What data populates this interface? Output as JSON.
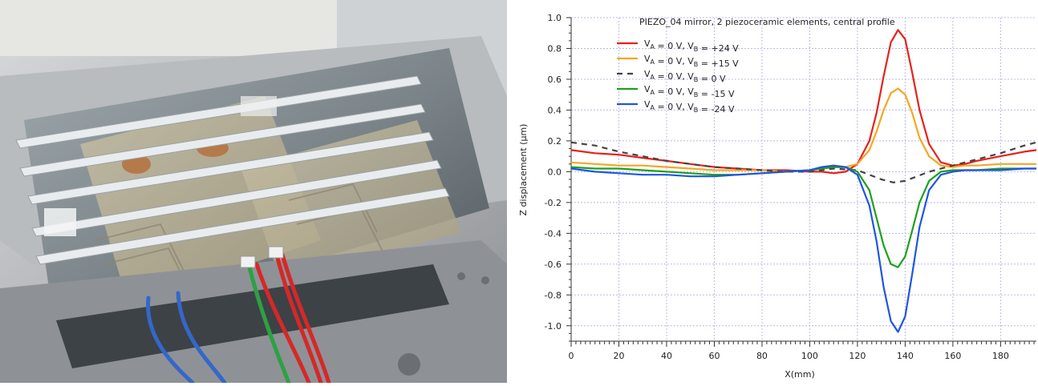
{
  "photo": {
    "description_icon": "photo-icon"
  },
  "chart_data": {
    "type": "line",
    "title": "PIEZO_04 mirror, 2 piezoceramic elements, central profile",
    "xlabel": "X(mm)",
    "ylabel": "Z displacement (µm)",
    "xlim": [
      0,
      195
    ],
    "ylim": [
      -1.1,
      1.0
    ],
    "xticks": [
      0,
      20,
      40,
      60,
      80,
      100,
      120,
      140,
      160,
      180
    ],
    "yticks": [
      1.0,
      0.8,
      0.6,
      0.4,
      0.2,
      0.0,
      -0.2,
      -0.4,
      -0.6,
      -0.8,
      -1.0
    ],
    "ytick_labels": [
      "1.0",
      "0.8",
      "0.6",
      "0.4",
      "0.2",
      "0.0",
      "-0.2",
      "-0.4",
      "-0.6",
      "-0.8",
      "-1.0"
    ],
    "grid": true,
    "legend_position": "top-left",
    "series": [
      {
        "name": "VA = 0 V, VB = +24 V",
        "legend_main": "V",
        "legend_sub_a": "A",
        "legend_mid": " = 0 V, V",
        "legend_sub_b": "B",
        "legend_tail": " = +24 V",
        "color": "#e8201c",
        "dash": "",
        "x": [
          0,
          10,
          20,
          30,
          40,
          50,
          60,
          70,
          80,
          90,
          100,
          105,
          110,
          115,
          120,
          125,
          128,
          131,
          134,
          137,
          140,
          143,
          146,
          150,
          155,
          160,
          165,
          170,
          180,
          190,
          195
        ],
        "y": [
          0.14,
          0.12,
          0.11,
          0.09,
          0.07,
          0.05,
          0.03,
          0.02,
          0.01,
          0.01,
          0.0,
          0.0,
          -0.01,
          0.0,
          0.05,
          0.2,
          0.38,
          0.62,
          0.84,
          0.92,
          0.86,
          0.64,
          0.4,
          0.18,
          0.06,
          0.04,
          0.05,
          0.07,
          0.1,
          0.13,
          0.14
        ]
      },
      {
        "name": "VA = 0 V, VB = +15 V",
        "legend_main": "V",
        "legend_sub_a": "A",
        "legend_mid": " = 0 V, V",
        "legend_sub_b": "B",
        "legend_tail": " = +15 V",
        "color": "#f5a623",
        "dash": "",
        "x": [
          0,
          10,
          20,
          30,
          40,
          50,
          60,
          70,
          80,
          90,
          100,
          105,
          110,
          115,
          120,
          125,
          128,
          131,
          134,
          137,
          140,
          143,
          146,
          150,
          155,
          160,
          165,
          170,
          180,
          190,
          195
        ],
        "y": [
          0.06,
          0.05,
          0.04,
          0.04,
          0.03,
          0.02,
          0.01,
          0.01,
          0.01,
          0.0,
          0.01,
          0.02,
          0.03,
          0.03,
          0.05,
          0.14,
          0.26,
          0.4,
          0.51,
          0.54,
          0.5,
          0.38,
          0.22,
          0.1,
          0.04,
          0.03,
          0.04,
          0.04,
          0.05,
          0.05,
          0.05
        ]
      },
      {
        "name": "VA = 0 V, VB = 0 V",
        "legend_main": "V",
        "legend_sub_a": "A",
        "legend_mid": " = 0 V, V",
        "legend_sub_b": "B",
        "legend_tail": " = 0 V",
        "color": "#444444",
        "dash": "7,6",
        "x": [
          0,
          10,
          20,
          30,
          40,
          50,
          60,
          70,
          80,
          90,
          100,
          110,
          120,
          125,
          130,
          135,
          140,
          145,
          150,
          160,
          170,
          180,
          190,
          195
        ],
        "y": [
          0.19,
          0.17,
          0.13,
          0.1,
          0.07,
          0.05,
          0.03,
          0.02,
          0.01,
          0.0,
          0.0,
          0.02,
          0.01,
          -0.02,
          -0.05,
          -0.07,
          -0.06,
          -0.03,
          0.0,
          0.04,
          0.08,
          0.12,
          0.17,
          0.19
        ]
      },
      {
        "name": "VA = 0 V, VB = -15 V",
        "legend_main": "V",
        "legend_sub_a": "A",
        "legend_mid": " = 0 V, V",
        "legend_sub_b": "B",
        "legend_tail": " = -15 V",
        "color": "#1ea01e",
        "dash": "",
        "x": [
          0,
          10,
          20,
          30,
          40,
          50,
          60,
          70,
          80,
          90,
          100,
          105,
          110,
          115,
          120,
          125,
          128,
          131,
          134,
          137,
          140,
          143,
          146,
          150,
          155,
          160,
          165,
          170,
          180,
          190,
          195
        ],
        "y": [
          0.03,
          0.02,
          0.02,
          0.01,
          0.0,
          -0.01,
          -0.02,
          -0.02,
          -0.01,
          0.0,
          0.01,
          0.02,
          0.03,
          0.03,
          0.0,
          -0.12,
          -0.3,
          -0.48,
          -0.6,
          -0.62,
          -0.55,
          -0.38,
          -0.2,
          -0.06,
          0.0,
          0.01,
          0.01,
          0.01,
          0.02,
          0.02,
          0.02
        ]
      },
      {
        "name": "VA = 0 V, VB = -24 V",
        "legend_main": "V",
        "legend_sub_a": "A",
        "legend_mid": " = 0 V, V",
        "legend_sub_b": "B",
        "legend_tail": " = -24 V",
        "color": "#1f55e0",
        "dash": "",
        "x": [
          0,
          10,
          20,
          30,
          40,
          50,
          60,
          70,
          80,
          90,
          100,
          105,
          110,
          115,
          120,
          125,
          128,
          131,
          134,
          137,
          140,
          143,
          146,
          150,
          155,
          160,
          165,
          170,
          180,
          190,
          195
        ],
        "y": [
          0.02,
          0.0,
          -0.01,
          -0.02,
          -0.02,
          -0.03,
          -0.03,
          -0.02,
          -0.01,
          0.0,
          0.01,
          0.03,
          0.04,
          0.03,
          -0.02,
          -0.22,
          -0.45,
          -0.75,
          -0.97,
          -1.04,
          -0.94,
          -0.66,
          -0.36,
          -0.12,
          -0.02,
          0.0,
          0.01,
          0.01,
          0.01,
          0.02,
          0.02
        ]
      }
    ]
  }
}
